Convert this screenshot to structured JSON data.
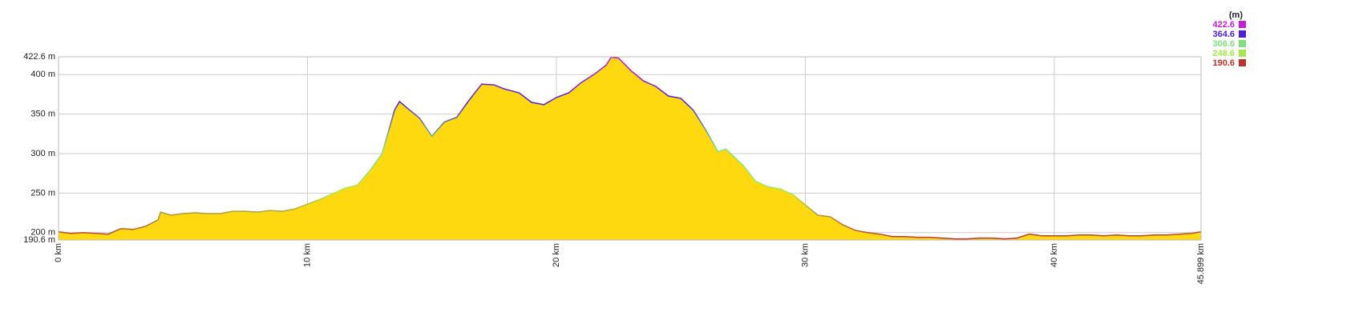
{
  "chart_data": {
    "type": "area",
    "color": "#ffd90f",
    "x": [
      0,
      0.5,
      1,
      1.5,
      2,
      2.5,
      3,
      3.5,
      4,
      4.1,
      4.5,
      5,
      5.5,
      6,
      6.5,
      7,
      7.5,
      8,
      8.5,
      9,
      9.5,
      10,
      10.5,
      11,
      11.5,
      12,
      12.5,
      13,
      13.5,
      13.7,
      14,
      14.5,
      15,
      15.5,
      16,
      16.5,
      17,
      17.5,
      17.9,
      18.5,
      19,
      19.5,
      20,
      20.5,
      21,
      21.5,
      22,
      22.2,
      22.5,
      23,
      23.5,
      24,
      24.5,
      25,
      25.5,
      26,
      26.5,
      26.8,
      27.5,
      28,
      28.5,
      29,
      29.5,
      30,
      30.5,
      31,
      31.5,
      32,
      32.5,
      33,
      33.5,
      34,
      34.5,
      35,
      35.5,
      36,
      36.5,
      37,
      37.5,
      38,
      38.5,
      39,
      39.5,
      40,
      40.5,
      41,
      41.5,
      42,
      42.5,
      43,
      43.5,
      44,
      44.5,
      45,
      45.5,
      45.899
    ],
    "values": [
      201,
      199,
      200,
      199,
      198,
      205,
      204,
      208,
      216,
      226,
      222,
      224,
      225,
      224,
      224,
      227,
      227,
      226,
      228,
      227,
      230,
      236,
      242,
      249,
      256,
      260,
      278,
      300,
      355,
      366,
      358,
      345,
      322,
      340,
      346,
      368,
      388,
      387,
      382,
      377,
      365,
      362,
      371,
      377,
      390,
      400,
      412,
      422,
      421,
      405,
      392,
      385,
      373,
      370,
      355,
      330,
      302,
      306,
      285,
      265,
      258,
      255,
      248,
      235,
      222,
      220,
      210,
      203,
      200,
      198,
      195,
      195,
      194,
      194,
      193,
      192,
      192,
      193,
      193,
      192,
      193,
      198,
      196,
      196,
      196,
      197,
      197,
      196,
      197,
      196,
      196,
      197,
      197,
      198,
      199,
      201
    ],
    "xlim": [
      0,
      45.899
    ],
    "ylim": [
      190.6,
      422.6
    ],
    "xticks": [
      {
        "value": 0,
        "label": "0 km"
      },
      {
        "value": 10,
        "label": "10 km"
      },
      {
        "value": 20,
        "label": "20 km"
      },
      {
        "value": 30,
        "label": "30 km"
      },
      {
        "value": 40,
        "label": "40 km"
      },
      {
        "value": 45.899,
        "label": "45.899 km"
      }
    ],
    "yticks": [
      {
        "value": 190.6,
        "label": "190.6 m"
      },
      {
        "value": 200,
        "label": "200 m"
      },
      {
        "value": 250,
        "label": "250 m"
      },
      {
        "value": 300,
        "label": "300 m"
      },
      {
        "value": 350,
        "label": "350 m"
      },
      {
        "value": 400,
        "label": "400 m"
      },
      {
        "value": 422.6,
        "label": "422.6 m"
      }
    ],
    "grid": true,
    "legend": {
      "title": "(m)",
      "entries": [
        {
          "value": 422.6,
          "color": "#c41fd6"
        },
        {
          "value": 364.6,
          "color": "#4b1fd6"
        },
        {
          "value": 306.6,
          "color": "#7fe07a"
        },
        {
          "value": 248.6,
          "color": "#a6e84a"
        },
        {
          "value": 190.6,
          "color": "#c0302c"
        }
      ]
    }
  }
}
